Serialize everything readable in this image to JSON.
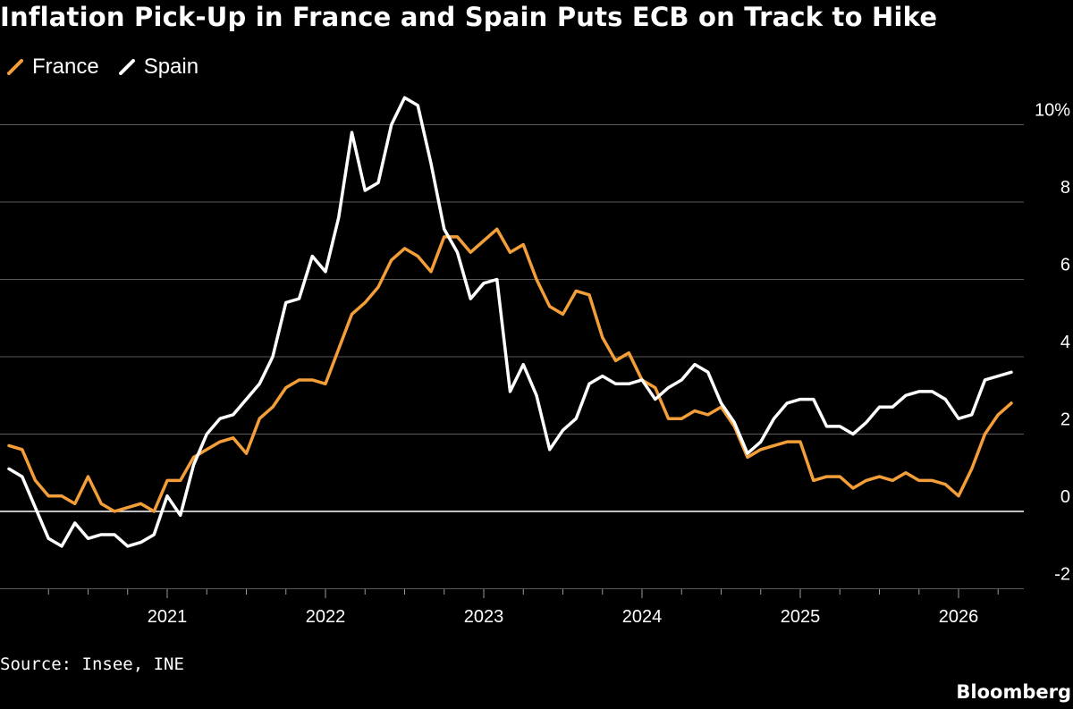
{
  "title": "Inflation Pick-Up in France and Spain Puts ECB on Track to Hike",
  "source": "Source: Insee, INE",
  "brand": "Bloomberg",
  "colors": {
    "background": "#000000",
    "france": "#f39e38",
    "spain": "#ffffff",
    "grid": "#5a5a5a",
    "zero_line": "#ffffff"
  },
  "chart_data": {
    "type": "line",
    "title": "Inflation Pick-Up in France and Spain Puts ECB on Track to Hike",
    "xlabel": "",
    "ylabel": "",
    "x_start": "2020-01",
    "x_frequency": "monthly",
    "xlim": [
      "2020-01",
      "2026-12"
    ],
    "x_ticks": [
      "2021",
      "2022",
      "2023",
      "2024",
      "2025",
      "2026"
    ],
    "ylim": [
      -2,
      10
    ],
    "y_ticks": [
      -2,
      0,
      2,
      4,
      6,
      8,
      10
    ],
    "y_tick_labels": [
      "-2",
      "0",
      "2",
      "4",
      "6",
      "8",
      "10%"
    ],
    "grid": true,
    "legend_position": "top-left",
    "series": [
      {
        "name": "France",
        "color": "#f39e38",
        "values": [
          1.7,
          1.6,
          0.8,
          0.4,
          0.4,
          0.2,
          0.9,
          0.2,
          0.0,
          0.1,
          0.2,
          0.0,
          0.8,
          0.8,
          1.4,
          1.6,
          1.8,
          1.9,
          1.5,
          2.4,
          2.7,
          3.2,
          3.4,
          3.4,
          3.3,
          4.2,
          5.1,
          5.4,
          5.8,
          6.5,
          6.8,
          6.6,
          6.2,
          7.1,
          7.1,
          6.7,
          7.0,
          7.3,
          6.7,
          6.9,
          6.0,
          5.3,
          5.1,
          5.7,
          5.6,
          4.5,
          3.9,
          4.1,
          3.4,
          3.2,
          2.4,
          2.4,
          2.6,
          2.5,
          2.7,
          2.2,
          1.4,
          1.6,
          1.7,
          1.8,
          1.8,
          0.8,
          0.9,
          0.9,
          0.6,
          0.8,
          0.9,
          0.8,
          1.0,
          0.8,
          0.8,
          0.7,
          0.4,
          1.1,
          2.0,
          2.5,
          2.8
        ]
      },
      {
        "name": "Spain",
        "color": "#ffffff",
        "values": [
          1.1,
          0.9,
          0.1,
          -0.7,
          -0.9,
          -0.3,
          -0.7,
          -0.6,
          -0.6,
          -0.9,
          -0.8,
          -0.6,
          0.4,
          -0.1,
          1.2,
          2.0,
          2.4,
          2.5,
          2.9,
          3.3,
          4.0,
          5.4,
          5.5,
          6.6,
          6.2,
          7.6,
          9.8,
          8.3,
          8.5,
          10.0,
          10.7,
          10.5,
          9.0,
          7.3,
          6.7,
          5.5,
          5.9,
          6.0,
          3.1,
          3.8,
          3.0,
          1.6,
          2.1,
          2.4,
          3.3,
          3.5,
          3.3,
          3.3,
          3.4,
          2.9,
          3.2,
          3.4,
          3.8,
          3.6,
          2.8,
          2.3,
          1.5,
          1.8,
          2.4,
          2.8,
          2.9,
          2.9,
          2.2,
          2.2,
          2.0,
          2.3,
          2.7,
          2.7,
          3.0,
          3.1,
          3.1,
          2.9,
          2.4,
          2.5,
          3.4,
          3.5,
          3.6
        ]
      }
    ]
  }
}
